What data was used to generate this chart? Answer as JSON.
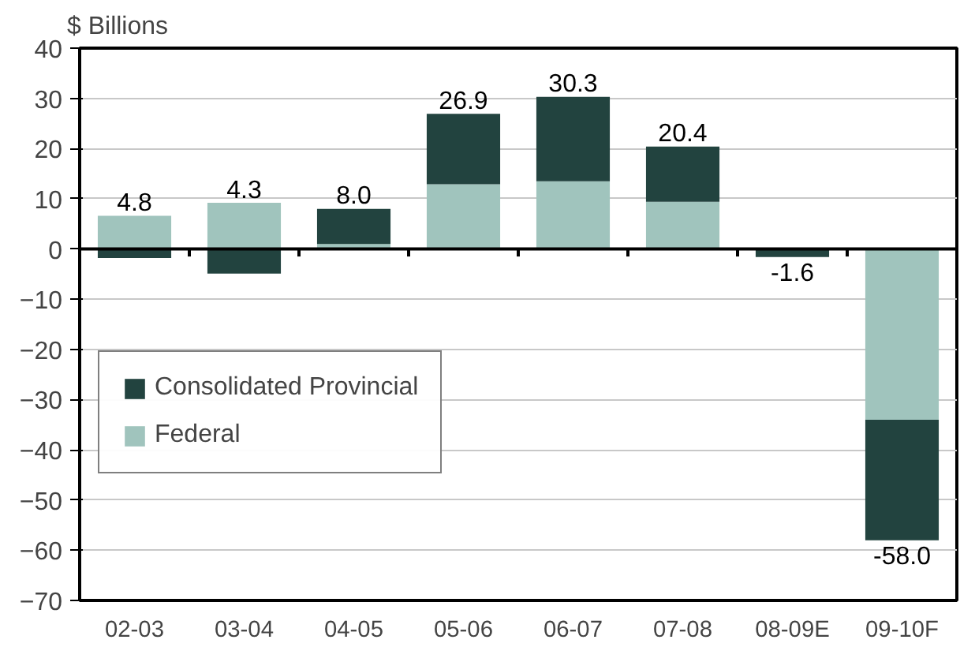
{
  "chart_data": {
    "type": "bar",
    "stacked": true,
    "ylabel": "$ Billions",
    "categories": [
      "02-03",
      "03-04",
      "04-05",
      "05-06",
      "06-07",
      "07-08",
      "08-09E",
      "09-10F"
    ],
    "series": [
      {
        "name": "Federal",
        "color": "#a0c4bd",
        "values": [
          6.6,
          9.2,
          1.0,
          12.9,
          13.5,
          9.4,
          0,
          -34
        ]
      },
      {
        "name": "Consolidated Provincial",
        "color": "#22433f",
        "values": [
          -1.8,
          -4.9,
          7.0,
          14.0,
          16.8,
          11.0,
          -1.6,
          -24
        ]
      }
    ],
    "totals": [
      "4.8",
      "4.3",
      "8.0",
      "26.9",
      "30.3",
      "20.4",
      "-1.6",
      "-58.0"
    ],
    "ylim": [
      -70,
      40
    ],
    "yticks": [
      -70,
      -60,
      -50,
      -40,
      -30,
      -20,
      -10,
      0,
      10,
      20,
      30,
      40
    ],
    "grid": "y",
    "legend": "bottom left"
  }
}
